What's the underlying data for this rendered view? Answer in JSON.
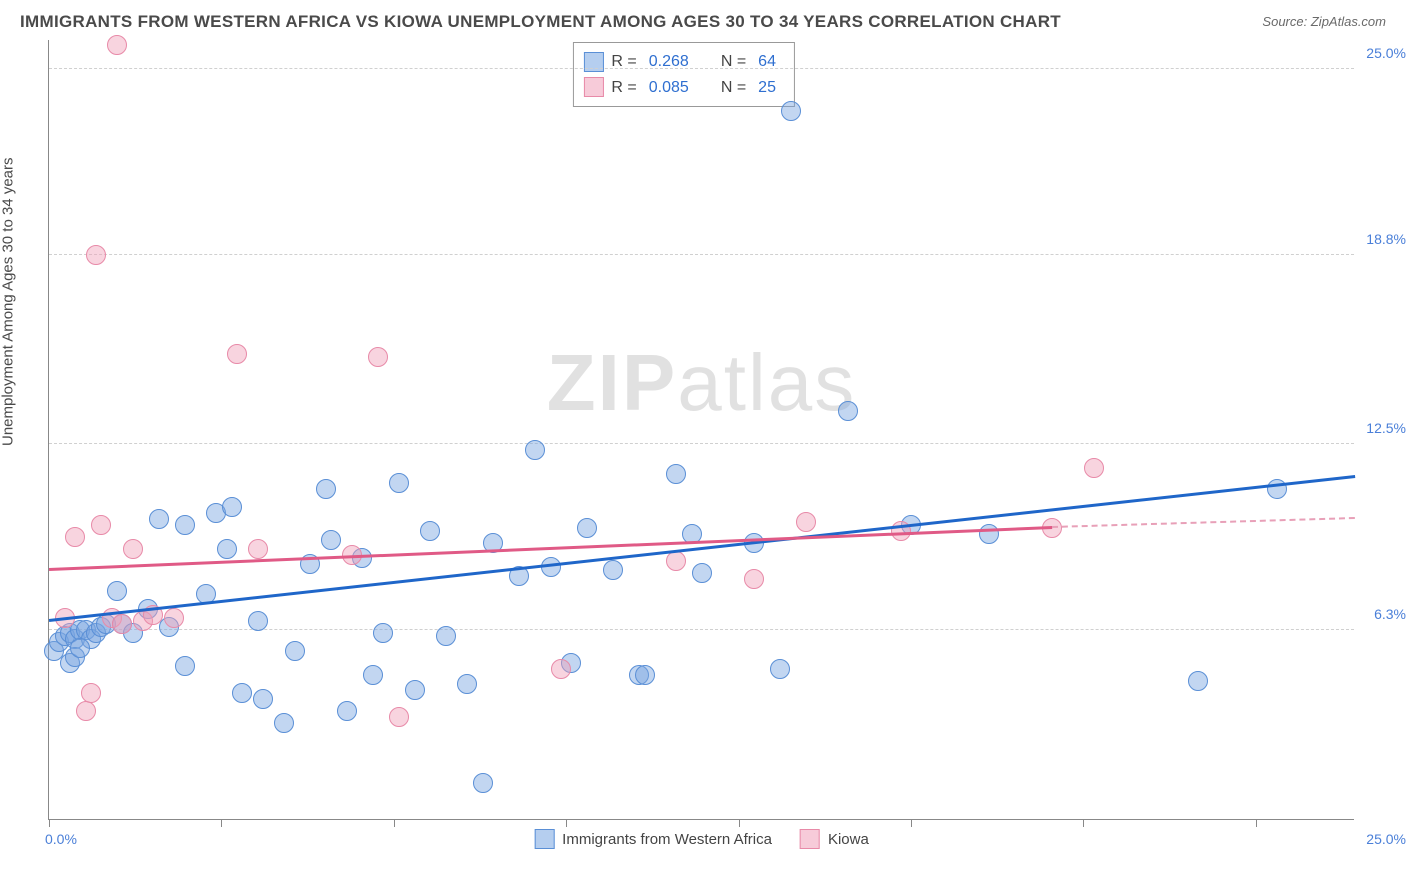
{
  "title": "IMMIGRANTS FROM WESTERN AFRICA VS KIOWA UNEMPLOYMENT AMONG AGES 30 TO 34 YEARS CORRELATION CHART",
  "source_label": "Source:",
  "source_value": "ZipAtlas.com",
  "ylabel": "Unemployment Among Ages 30 to 34 years",
  "watermark_bold": "ZIP",
  "watermark_rest": "atlas",
  "chart": {
    "type": "scatter",
    "xlim": [
      0,
      25
    ],
    "ylim": [
      0,
      26
    ],
    "xtick_positions": [
      0,
      3.3,
      6.6,
      9.9,
      13.2,
      16.5,
      19.8,
      23.1
    ],
    "xtick_labels_shown": {
      "first": "0.0%",
      "last": "25.0%"
    },
    "ytick_positions": [
      6.3,
      12.5,
      18.8,
      25.0
    ],
    "ytick_labels": [
      "6.3%",
      "12.5%",
      "18.8%",
      "25.0%"
    ],
    "grid_color": "#d0d0d0",
    "background_color": "#ffffff",
    "axis_color": "#888888",
    "marker_radius": 10,
    "series": [
      {
        "name": "Immigrants from Western Africa",
        "color_fill": "rgba(120,165,225,0.45)",
        "color_stroke": "#5a8fd6",
        "trend_color": "#1f66c9",
        "R": "0.268",
        "N": "64",
        "trend": {
          "x1": 0,
          "y1": 6.6,
          "x2": 25,
          "y2": 11.4
        },
        "points": [
          [
            0.1,
            5.6
          ],
          [
            0.2,
            5.9
          ],
          [
            0.3,
            6.1
          ],
          [
            0.4,
            6.2
          ],
          [
            0.5,
            6.0
          ],
          [
            0.6,
            6.3
          ],
          [
            0.7,
            6.3
          ],
          [
            0.8,
            6.0
          ],
          [
            0.9,
            6.2
          ],
          [
            1.0,
            6.4
          ],
          [
            1.1,
            6.5
          ],
          [
            0.4,
            5.2
          ],
          [
            0.5,
            5.4
          ],
          [
            0.6,
            5.7
          ],
          [
            1.3,
            7.6
          ],
          [
            1.4,
            6.5
          ],
          [
            1.6,
            6.2
          ],
          [
            1.9,
            7.0
          ],
          [
            2.1,
            10.0
          ],
          [
            2.3,
            6.4
          ],
          [
            2.6,
            9.8
          ],
          [
            2.6,
            5.1
          ],
          [
            3.0,
            7.5
          ],
          [
            3.2,
            10.2
          ],
          [
            3.4,
            9.0
          ],
          [
            3.5,
            10.4
          ],
          [
            3.7,
            4.2
          ],
          [
            4.0,
            6.6
          ],
          [
            4.1,
            4.0
          ],
          [
            4.5,
            3.2
          ],
          [
            4.7,
            5.6
          ],
          [
            5.0,
            8.5
          ],
          [
            5.3,
            11.0
          ],
          [
            5.4,
            9.3
          ],
          [
            5.7,
            3.6
          ],
          [
            6.0,
            8.7
          ],
          [
            6.2,
            4.8
          ],
          [
            6.4,
            6.2
          ],
          [
            6.7,
            11.2
          ],
          [
            7.0,
            4.3
          ],
          [
            7.3,
            9.6
          ],
          [
            7.6,
            6.1
          ],
          [
            8.0,
            4.5
          ],
          [
            8.3,
            1.2
          ],
          [
            8.5,
            9.2
          ],
          [
            9.0,
            8.1
          ],
          [
            9.3,
            12.3
          ],
          [
            9.6,
            8.4
          ],
          [
            10.0,
            5.2
          ],
          [
            10.3,
            9.7
          ],
          [
            10.8,
            8.3
          ],
          [
            11.3,
            4.8
          ],
          [
            11.4,
            4.8
          ],
          [
            12.0,
            11.5
          ],
          [
            12.3,
            9.5
          ],
          [
            12.5,
            8.2
          ],
          [
            13.5,
            9.2
          ],
          [
            14.0,
            5.0
          ],
          [
            14.2,
            23.6
          ],
          [
            15.3,
            13.6
          ],
          [
            16.5,
            9.8
          ],
          [
            18.0,
            9.5
          ],
          [
            22.0,
            4.6
          ],
          [
            23.5,
            11.0
          ]
        ]
      },
      {
        "name": "Kiowa",
        "color_fill": "rgba(240,160,185,0.45)",
        "color_stroke": "#e88aa8",
        "trend_color": "#e05a86",
        "trend_dash_color": "#e8a0b8",
        "R": "0.085",
        "N": "25",
        "trend": {
          "x1": 0,
          "y1": 8.3,
          "x2": 19.2,
          "y2": 9.7
        },
        "trend_dashed": {
          "x1": 19.2,
          "y1": 9.7,
          "x2": 25,
          "y2": 10.0
        },
        "points": [
          [
            0.3,
            6.7
          ],
          [
            0.5,
            9.4
          ],
          [
            0.7,
            3.6
          ],
          [
            0.8,
            4.2
          ],
          [
            1.0,
            9.8
          ],
          [
            1.2,
            6.7
          ],
          [
            1.3,
            25.8
          ],
          [
            1.4,
            6.5
          ],
          [
            0.9,
            18.8
          ],
          [
            1.6,
            9.0
          ],
          [
            1.8,
            6.6
          ],
          [
            2.0,
            6.8
          ],
          [
            2.4,
            6.7
          ],
          [
            3.6,
            15.5
          ],
          [
            4.0,
            9.0
          ],
          [
            5.8,
            8.8
          ],
          [
            6.3,
            15.4
          ],
          [
            6.7,
            3.4
          ],
          [
            9.8,
            5.0
          ],
          [
            12.0,
            8.6
          ],
          [
            13.5,
            8.0
          ],
          [
            14.5,
            9.9
          ],
          [
            16.3,
            9.6
          ],
          [
            19.2,
            9.7
          ],
          [
            20.0,
            11.7
          ]
        ]
      }
    ],
    "legend_box": {
      "rows": [
        {
          "swatch_fill": "rgba(120,165,225,0.55)",
          "swatch_stroke": "#5a8fd6",
          "R_label": "R =",
          "R": "0.268",
          "N_label": "N =",
          "N": "64"
        },
        {
          "swatch_fill": "rgba(240,160,185,0.55)",
          "swatch_stroke": "#e88aa8",
          "R_label": "R =",
          "R": "0.085",
          "N_label": "N =",
          "N": "25"
        }
      ]
    },
    "bottom_legend": [
      {
        "swatch_fill": "rgba(120,165,225,0.55)",
        "swatch_stroke": "#5a8fd6",
        "label": "Immigrants from Western Africa"
      },
      {
        "swatch_fill": "rgba(240,160,185,0.55)",
        "swatch_stroke": "#e88aa8",
        "label": "Kiowa"
      }
    ]
  }
}
